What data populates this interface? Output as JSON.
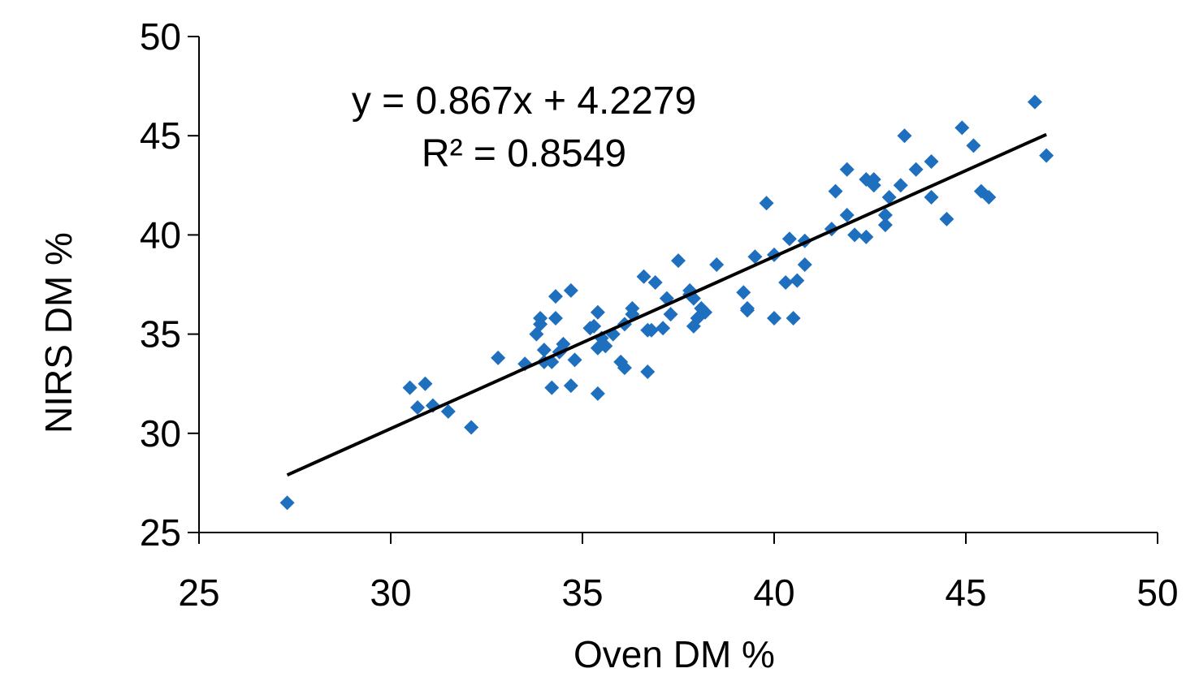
{
  "chart_data": {
    "type": "scatter",
    "xlabel": "Oven DM %",
    "ylabel": "NIRS DM %",
    "xlim": [
      25,
      50
    ],
    "ylim": [
      25,
      50
    ],
    "x_ticks": [
      25,
      30,
      35,
      40,
      45,
      50
    ],
    "y_ticks": [
      25,
      30,
      35,
      40,
      45,
      50
    ],
    "grid": false,
    "legend": "none",
    "colors": {
      "points": "#1f6fbf",
      "trendline": "#000000",
      "axis": "#000000"
    },
    "annotations": {
      "equation": "y = 0.867x + 4.2279",
      "r_squared": "R² = 0.8549"
    },
    "trendline": {
      "slope": 0.867,
      "intercept": 4.2279,
      "x_range": [
        27.3,
        47.1
      ]
    },
    "points": [
      [
        27.3,
        26.5
      ],
      [
        30.5,
        32.3
      ],
      [
        30.7,
        31.3
      ],
      [
        30.9,
        32.5
      ],
      [
        31.1,
        31.4
      ],
      [
        31.5,
        31.1
      ],
      [
        32.1,
        30.3
      ],
      [
        32.8,
        33.8
      ],
      [
        33.5,
        33.5
      ],
      [
        33.8,
        35.0
      ],
      [
        33.9,
        35.5
      ],
      [
        33.9,
        35.8
      ],
      [
        34.0,
        34.2
      ],
      [
        34.0,
        33.6
      ],
      [
        34.2,
        33.6
      ],
      [
        34.2,
        32.3
      ],
      [
        34.3,
        35.8
      ],
      [
        34.3,
        36.9
      ],
      [
        34.4,
        34.1
      ],
      [
        34.5,
        34.5
      ],
      [
        34.7,
        37.2
      ],
      [
        34.7,
        32.4
      ],
      [
        34.8,
        33.7
      ],
      [
        35.2,
        35.3
      ],
      [
        35.3,
        35.4
      ],
      [
        35.4,
        34.3
      ],
      [
        35.4,
        36.1
      ],
      [
        35.4,
        32.0
      ],
      [
        35.5,
        34.8
      ],
      [
        35.6,
        34.4
      ],
      [
        35.8,
        35.0
      ],
      [
        36.0,
        33.6
      ],
      [
        36.1,
        35.5
      ],
      [
        36.1,
        33.3
      ],
      [
        36.3,
        36.3
      ],
      [
        36.3,
        36.0
      ],
      [
        36.6,
        37.9
      ],
      [
        36.7,
        33.1
      ],
      [
        36.7,
        35.2
      ],
      [
        36.8,
        35.2
      ],
      [
        36.9,
        37.6
      ],
      [
        37.1,
        35.3
      ],
      [
        37.2,
        36.8
      ],
      [
        37.3,
        36.0
      ],
      [
        37.5,
        38.7
      ],
      [
        37.8,
        37.2
      ],
      [
        37.8,
        37.0
      ],
      [
        37.9,
        35.4
      ],
      [
        37.9,
        36.8
      ],
      [
        38.0,
        35.8
      ],
      [
        38.1,
        36.3
      ],
      [
        38.2,
        36.1
      ],
      [
        38.5,
        38.5
      ],
      [
        39.2,
        37.1
      ],
      [
        39.3,
        36.2
      ],
      [
        39.3,
        36.3
      ],
      [
        39.5,
        38.9
      ],
      [
        39.8,
        41.6
      ],
      [
        40.0,
        35.8
      ],
      [
        40.0,
        39.0
      ],
      [
        40.3,
        37.6
      ],
      [
        40.4,
        39.8
      ],
      [
        40.5,
        35.8
      ],
      [
        40.6,
        37.7
      ],
      [
        40.8,
        39.7
      ],
      [
        40.8,
        38.5
      ],
      [
        41.5,
        40.3
      ],
      [
        41.6,
        42.2
      ],
      [
        41.9,
        43.3
      ],
      [
        41.9,
        41.0
      ],
      [
        42.1,
        40.0
      ],
      [
        42.4,
        39.9
      ],
      [
        42.4,
        42.8
      ],
      [
        42.6,
        42.5
      ],
      [
        42.6,
        42.8
      ],
      [
        42.9,
        41.0
      ],
      [
        42.9,
        40.5
      ],
      [
        43.0,
        41.9
      ],
      [
        43.3,
        42.5
      ],
      [
        43.4,
        45.0
      ],
      [
        43.7,
        43.3
      ],
      [
        44.1,
        41.9
      ],
      [
        44.1,
        43.7
      ],
      [
        44.5,
        40.8
      ],
      [
        44.9,
        45.4
      ],
      [
        45.2,
        44.5
      ],
      [
        45.4,
        42.2
      ],
      [
        45.6,
        41.9
      ],
      [
        46.8,
        46.7
      ],
      [
        47.1,
        44.0
      ]
    ]
  }
}
